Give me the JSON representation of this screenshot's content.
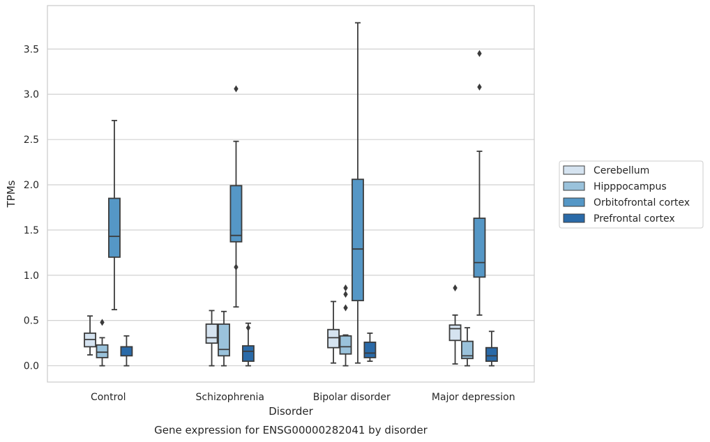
{
  "chart_data": {
    "type": "box",
    "title": "",
    "xlabel": "Disorder",
    "ylabel": "TPMs",
    "caption": "Gene expression for ENSG00000282041 by disorder",
    "categories": [
      "Control",
      "Schizophrenia",
      "Bipolar disorder",
      "Major depression"
    ],
    "ylim": [
      -0.18,
      3.98
    ],
    "yticks": [
      0.0,
      0.5,
      1.0,
      1.5,
      2.0,
      2.5,
      3.0,
      3.5
    ],
    "ytick_labels": [
      "0.0",
      "0.5",
      "1.0",
      "1.5",
      "2.0",
      "2.5",
      "3.0",
      "3.5"
    ],
    "grid": true,
    "legend_position": "right",
    "series": [
      {
        "name": "Cerebellum",
        "color": "#d5e3f0",
        "boxes": [
          {
            "min": 0.12,
            "q1": 0.21,
            "median": 0.29,
            "q3": 0.36,
            "max": 0.55,
            "outliers": []
          },
          {
            "min": 0.0,
            "q1": 0.25,
            "median": 0.31,
            "q3": 0.46,
            "max": 0.61,
            "outliers": []
          },
          {
            "min": 0.03,
            "q1": 0.2,
            "median": 0.31,
            "q3": 0.4,
            "max": 0.71,
            "outliers": []
          },
          {
            "min": 0.02,
            "q1": 0.28,
            "median": 0.41,
            "q3": 0.45,
            "max": 0.56,
            "outliers": [
              0.86
            ]
          }
        ]
      },
      {
        "name": "Hipppocampus",
        "color": "#9ac2db",
        "boxes": [
          {
            "min": 0.0,
            "q1": 0.09,
            "median": 0.15,
            "q3": 0.23,
            "max": 0.31,
            "outliers": [
              0.48
            ]
          },
          {
            "min": 0.0,
            "q1": 0.11,
            "median": 0.18,
            "q3": 0.46,
            "max": 0.6,
            "outliers": []
          },
          {
            "min": 0.0,
            "q1": 0.13,
            "median": 0.21,
            "q3": 0.33,
            "max": 0.34,
            "outliers": [
              0.64,
              0.79,
              0.86
            ]
          },
          {
            "min": 0.0,
            "q1": 0.08,
            "median": 0.11,
            "q3": 0.27,
            "max": 0.42,
            "outliers": []
          }
        ]
      },
      {
        "name": "Orbitofrontal cortex",
        "color": "#5597c6",
        "boxes": [
          {
            "min": 0.62,
            "q1": 1.2,
            "median": 1.43,
            "q3": 1.85,
            "max": 2.71,
            "outliers": []
          },
          {
            "min": 0.65,
            "q1": 1.37,
            "median": 1.44,
            "q3": 1.99,
            "max": 2.48,
            "outliers": [
              1.09,
              3.06
            ]
          },
          {
            "min": 0.03,
            "q1": 0.72,
            "median": 1.29,
            "q3": 2.06,
            "max": 3.79,
            "outliers": []
          },
          {
            "min": 0.56,
            "q1": 0.98,
            "median": 1.14,
            "q3": 1.63,
            "max": 2.37,
            "outliers": [
              3.08,
              3.45
            ]
          }
        ]
      },
      {
        "name": "Prefrontal cortex",
        "color": "#2a6aa8",
        "boxes": [
          {
            "min": 0.0,
            "q1": 0.11,
            "median": 0.21,
            "q3": 0.21,
            "max": 0.33,
            "outliers": []
          },
          {
            "min": 0.0,
            "q1": 0.05,
            "median": 0.16,
            "q3": 0.22,
            "max": 0.47,
            "outliers": [
              0.42
            ]
          },
          {
            "min": 0.05,
            "q1": 0.09,
            "median": 0.14,
            "q3": 0.26,
            "max": 0.36,
            "outliers": []
          },
          {
            "min": 0.0,
            "q1": 0.05,
            "median": 0.11,
            "q3": 0.2,
            "max": 0.38,
            "outliers": []
          }
        ]
      }
    ]
  }
}
